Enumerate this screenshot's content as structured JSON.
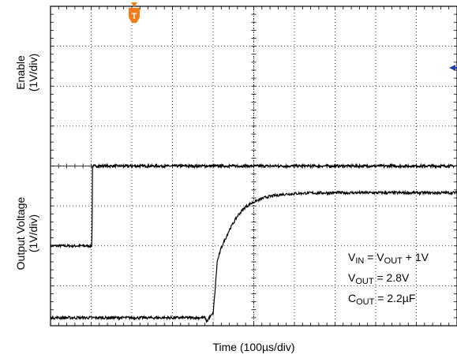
{
  "chart_data": {
    "type": "line",
    "title": "",
    "xlabel": "Time (100µs/div)",
    "ylabels": [
      {
        "line1": "Enable",
        "line2": "(1V/div)"
      },
      {
        "line1": "Output Voltage",
        "line2": "(1V/div)"
      }
    ],
    "x_divisions": 10,
    "y_divisions": 8,
    "x_range_us": [
      0,
      1000
    ],
    "trigger_marker": "T",
    "trigger_time_us": 100,
    "grid": true,
    "series": [
      {
        "trace": "enable",
        "points_div": [
          [
            0,
            2.0
          ],
          [
            1.02,
            2.0
          ],
          [
            1.03,
            4.0
          ],
          [
            10,
            4.0
          ]
        ],
        "noise_div": 0.035
      },
      {
        "trace": "output",
        "points_div": [
          [
            0,
            0.2
          ],
          [
            1.5,
            0.2
          ],
          [
            3.0,
            0.2
          ],
          [
            3.8,
            0.2
          ],
          [
            3.85,
            0.1
          ],
          [
            3.9,
            0.2
          ],
          [
            4.0,
            0.3
          ],
          [
            4.05,
            0.9
          ],
          [
            4.1,
            1.6
          ],
          [
            4.2,
            1.95
          ],
          [
            4.4,
            2.4
          ],
          [
            4.6,
            2.75
          ],
          [
            4.8,
            2.98
          ],
          [
            5.0,
            3.1
          ],
          [
            5.3,
            3.22
          ],
          [
            5.7,
            3.29
          ],
          [
            6.2,
            3.32
          ],
          [
            7.0,
            3.33
          ],
          [
            10,
            3.33
          ]
        ],
        "noise_div": 0.035
      }
    ],
    "annotations": [
      {
        "main": "V",
        "sub": "IN",
        "tail": " = V",
        "sub2": "OUT",
        "tail2": " + 1V"
      },
      {
        "main": "V",
        "sub": "OUT",
        "tail": " = 2.8V"
      },
      {
        "main": "C",
        "sub": "OUT",
        "tail": " = 2.2µF"
      }
    ]
  }
}
